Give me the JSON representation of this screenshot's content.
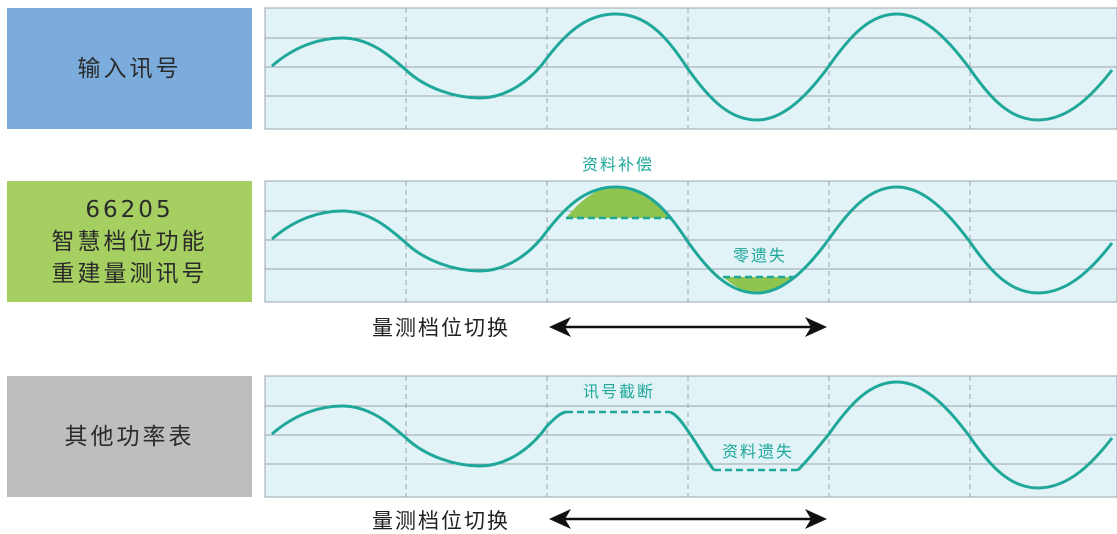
{
  "rows": [
    {
      "label_lines": [
        "输入讯号"
      ],
      "color": "#7bacdc"
    },
    {
      "label_lines": [
        "66205",
        "智慧档位功能",
        "重建量测讯号"
      ],
      "color": "#a6cf62"
    },
    {
      "label_lines": [
        "其他功率表"
      ],
      "color": "#bdbec0"
    }
  ],
  "annotations": {
    "compensation": "资料补偿",
    "zero_loss": "零遗失",
    "signal_cut": "讯号截断",
    "data_loss": "资料遗失"
  },
  "range_switch_label": "量测档位切换",
  "colors": {
    "wave": "#1fa89a",
    "panel_bg": "#e2f3f8",
    "panel_border": "#9aa5ad",
    "fill_area": "#8fc44f"
  }
}
